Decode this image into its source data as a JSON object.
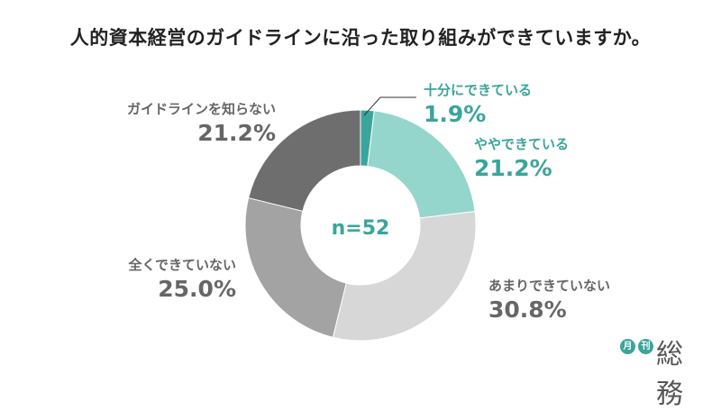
{
  "chart_data": {
    "type": "pie",
    "title": "人的資本経営のガイドラインに沿った取り組みができていますか。",
    "center_label": "n=52",
    "slices": [
      {
        "label": "十分にできている",
        "value": 1.9,
        "value_label": "1.9%",
        "color": "#3aa59a"
      },
      {
        "label": "ややできている",
        "value": 21.2,
        "value_label": "21.2%",
        "color": "#94d6cb"
      },
      {
        "label": "あまりできていない",
        "value": 30.8,
        "value_label": "30.8%",
        "color": "#d7d7d7"
      },
      {
        "label": "全くできていない",
        "value": 25.0,
        "value_label": "25.0%",
        "color": "#a3a3a3"
      },
      {
        "label": "ガイドラインを知らない",
        "value": 21.2,
        "value_label": "21.2%",
        "color": "#6e6e6e"
      }
    ],
    "label_colors": {
      "teal": "#3aa59a",
      "gray": "#666666"
    }
  },
  "logo": {
    "badge1": "月",
    "badge2": "刊",
    "word": "総務"
  }
}
